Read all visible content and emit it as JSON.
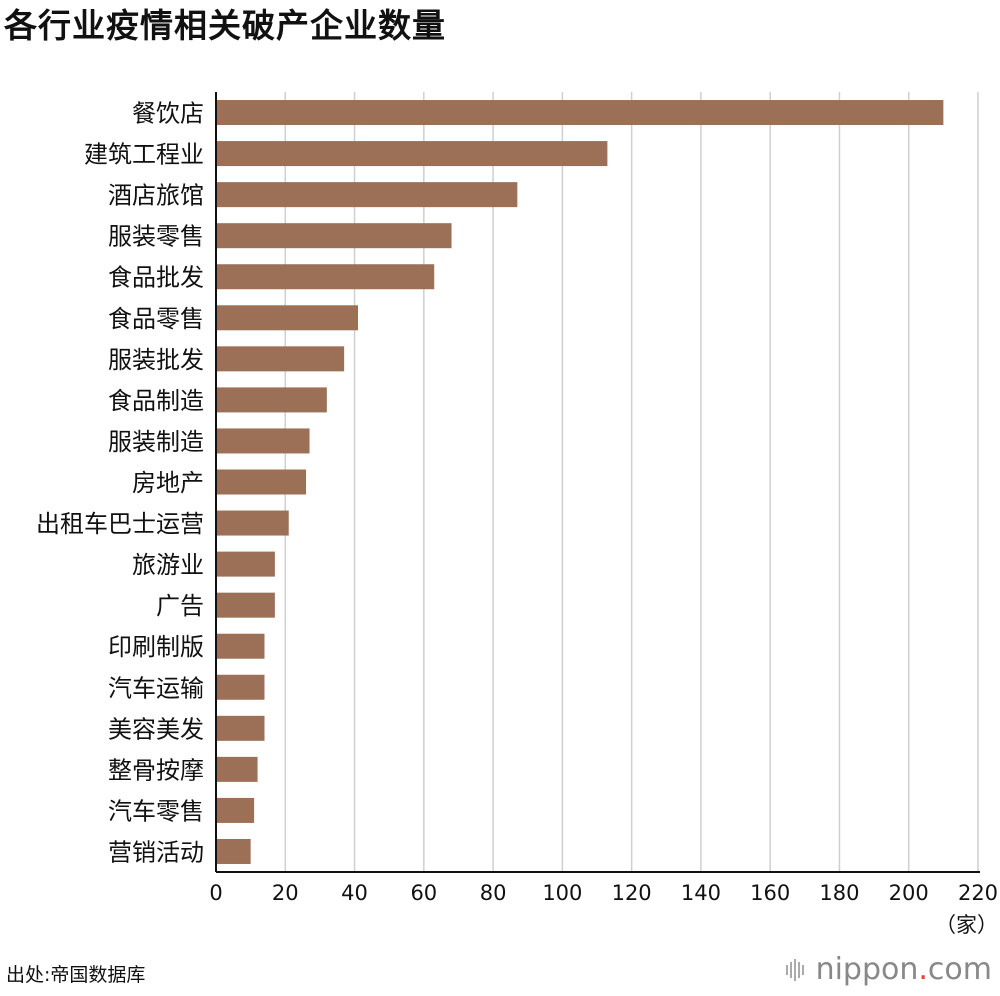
{
  "title": "各行业疫情相关破产企业数量",
  "source": "出处:帝国数据库",
  "brand": {
    "main": "nippon",
    "dot": ".",
    "suffix": "com",
    "icon": "nippon-logo-icon"
  },
  "colors": {
    "bar": "#9b7056",
    "grid": "#cfcfcf",
    "axis": "#111111",
    "text": "#111111"
  },
  "chart_data": {
    "type": "bar",
    "orientation": "horizontal",
    "title": "各行业疫情相关破产企业数量",
    "unit": "（家）",
    "categories": [
      "餐饮店",
      "建筑工程业",
      "酒店旅馆",
      "服装零售",
      "食品批发",
      "食品零售",
      "服装批发",
      "食品制造",
      "服装制造",
      "房地产",
      "出租车巴士运营",
      "旅游业",
      "广告",
      "印刷制版",
      "汽车运输",
      "美容美发",
      "整骨按摩",
      "汽车零售",
      "营销活动"
    ],
    "values": [
      210,
      113,
      87,
      68,
      63,
      41,
      37,
      32,
      27,
      26,
      21,
      17,
      17,
      14,
      14,
      14,
      12,
      11,
      10
    ],
    "xlim": [
      0,
      220
    ],
    "xticks": [
      0,
      20,
      40,
      60,
      80,
      100,
      120,
      140,
      160,
      180,
      200,
      220
    ],
    "grid": true,
    "legend": "none"
  }
}
